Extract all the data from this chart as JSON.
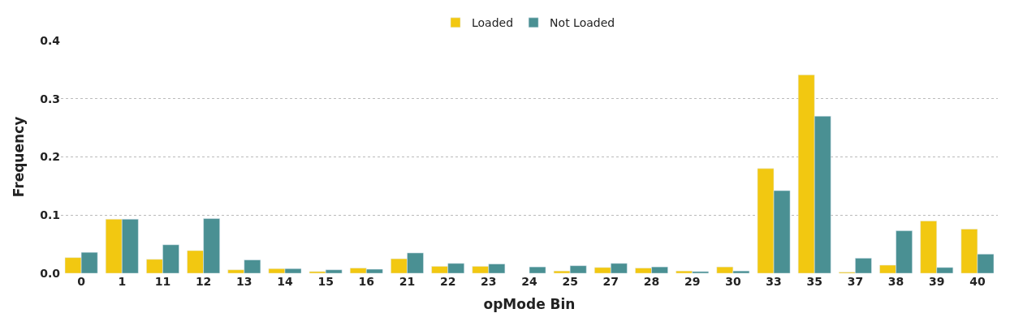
{
  "chart_data": {
    "type": "bar",
    "xlabel": "opMode Bin",
    "ylabel": "Frequency",
    "categories": [
      "0",
      "1",
      "11",
      "12",
      "13",
      "14",
      "15",
      "16",
      "21",
      "22",
      "23",
      "24",
      "25",
      "27",
      "28",
      "29",
      "30",
      "33",
      "35",
      "37",
      "38",
      "39",
      "40"
    ],
    "series": [
      {
        "name": "Loaded",
        "color": "#f2c811",
        "values": [
          0.027,
          0.093,
          0.024,
          0.039,
          0.006,
          0.008,
          0.003,
          0.009,
          0.025,
          0.012,
          0.012,
          null,
          0.004,
          0.01,
          0.009,
          0.004,
          0.011,
          0.18,
          0.341,
          0.002,
          0.014,
          0.09,
          0.076
        ]
      },
      {
        "name": "Not Loaded",
        "color": "#4a9093",
        "values": [
          0.036,
          0.093,
          0.049,
          0.094,
          0.023,
          0.008,
          0.006,
          0.007,
          0.035,
          0.017,
          0.016,
          0.011,
          0.013,
          0.017,
          0.011,
          0.003,
          0.004,
          0.142,
          0.27,
          0.026,
          0.073,
          0.01,
          0.033
        ]
      }
    ],
    "ylim": [
      0,
      0.4
    ],
    "yticks": [
      {
        "value": 0,
        "label": "0.0"
      },
      0.1,
      0.2,
      0.3,
      0.4
    ],
    "grid": "y",
    "legend": "top"
  }
}
